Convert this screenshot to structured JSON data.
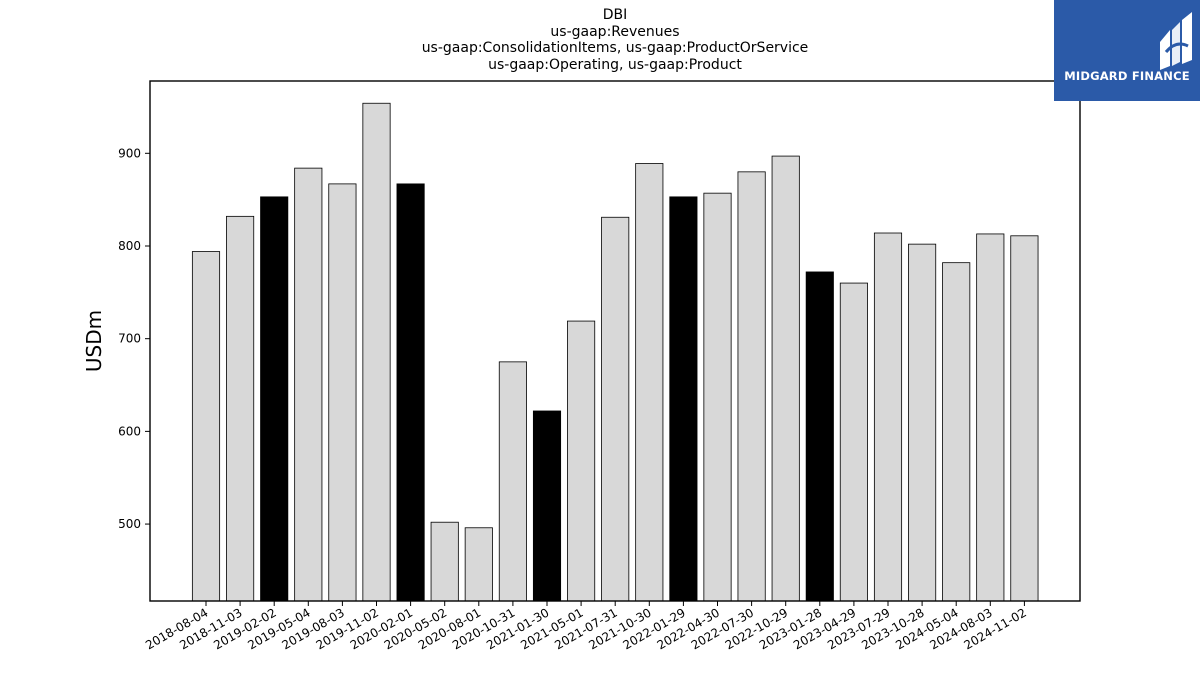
{
  "title_lines": [
    "DBI",
    "us-gaap:Revenues",
    "us-gaap:ConsolidationItems, us-gaap:ProductOrService",
    "us-gaap:Operating, us-gaap:Product"
  ],
  "logo": {
    "text": "MIDGARD FINANCE",
    "color": "#2b5aa8"
  },
  "colors": {
    "bar_default": "#d8d8d8",
    "bar_highlight": "#000000",
    "edge": "#000000"
  },
  "chart_data": {
    "type": "bar",
    "title": "DBI\nus-gaap:Revenues\nus-gaap:ConsolidationItems, us-gaap:ProductOrService\nus-gaap:Operating, us-gaap:Product",
    "xlabel": "",
    "ylabel": "USDm",
    "ylim": [
      417,
      978
    ],
    "yticks": [
      500,
      600,
      700,
      800,
      900
    ],
    "grid": false,
    "categories": [
      "2018-08-04",
      "2018-11-03",
      "2019-02-02",
      "2019-05-04",
      "2019-08-03",
      "2019-11-02",
      "2020-02-01",
      "2020-05-02",
      "2020-08-01",
      "2020-10-31",
      "2021-01-30",
      "2021-05-01",
      "2021-07-31",
      "2021-10-30",
      "2022-01-29",
      "2022-04-30",
      "2022-07-30",
      "2022-10-29",
      "2023-01-28",
      "2023-04-29",
      "2023-07-29",
      "2023-10-28",
      "2024-05-04",
      "2024-08-03",
      "2024-11-02"
    ],
    "values": [
      794,
      832,
      853,
      884,
      867,
      954,
      867,
      502,
      496,
      675,
      622,
      719,
      831,
      889,
      853,
      857,
      880,
      897,
      772,
      760,
      814,
      802,
      782,
      813,
      811
    ],
    "highlighted": [
      false,
      false,
      true,
      false,
      false,
      false,
      true,
      false,
      false,
      false,
      true,
      false,
      false,
      false,
      true,
      false,
      false,
      false,
      true,
      false,
      false,
      false,
      false,
      false,
      false
    ]
  }
}
